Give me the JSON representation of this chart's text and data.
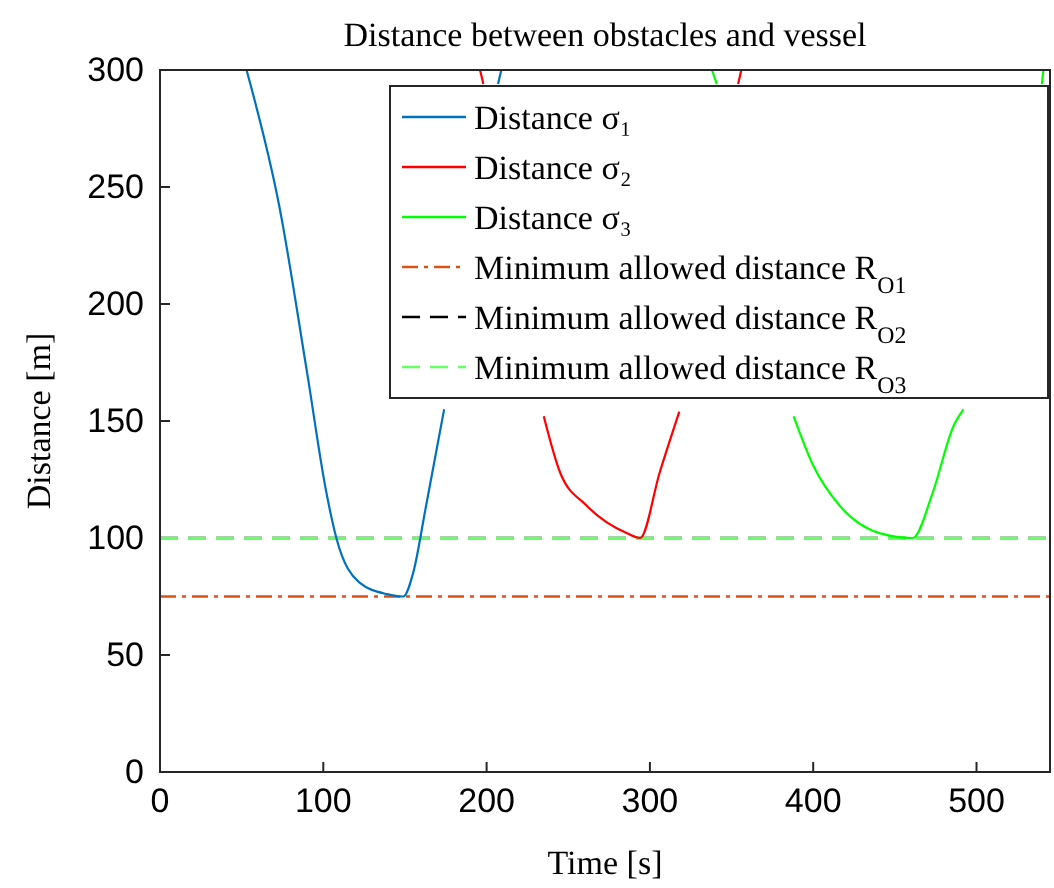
{
  "chart_data": {
    "type": "line",
    "title": "Distance between obstacles and vessel",
    "xlabel": "Time [s]",
    "ylabel": "Distance [m]",
    "xlim": [
      0,
      545
    ],
    "xticks": [
      0,
      100,
      200,
      300,
      400,
      500
    ],
    "ylim": [
      0,
      300
    ],
    "yticks": [
      0,
      50,
      100,
      150,
      200,
      250,
      300
    ],
    "grid": false,
    "legend": "top right",
    "line_style": "solid",
    "marker": "none",
    "series": [
      {
        "name": "Distance σ₁",
        "color": "#0072bd",
        "x": [
          53,
          73,
          90,
          102,
          108,
          122,
          139,
          149,
          155,
          163,
          174,
          190,
          207,
          209
        ],
        "values": [
          300,
          242,
          171,
          119,
          100,
          81,
          76,
          75,
          85,
          114,
          155,
          null,
          294,
          300
        ]
      },
      {
        "name": "Distance σ₂",
        "color": "#ff0000",
        "x": [
          196,
          198,
          215,
          235,
          245,
          261,
          286,
          294,
          306,
          318,
          330,
          354,
          356
        ],
        "values": [
          300,
          294,
          null,
          152,
          128,
          114,
          102,
          100,
          128,
          154,
          null,
          294,
          300
        ]
      },
      {
        "name": "Distance σ₃",
        "color": "#00ff00",
        "x": [
          338,
          341,
          360,
          388,
          400,
          416,
          441,
          461,
          473,
          486,
          492,
          510,
          540,
          541
        ],
        "values": [
          300,
          294,
          null,
          152,
          131,
          114,
          102,
          100,
          119,
          148,
          155,
          null,
          294,
          300
        ]
      }
    ],
    "ref_lines": [
      {
        "axis": "y",
        "value": 75,
        "label": "Minimum allowed distance R$_{O1}$",
        "color": "#d95319",
        "line_style": "dashdot"
      },
      {
        "axis": "y",
        "value": 100,
        "label": "Minimum allowed distance R$_{O2}$",
        "color": "#000000",
        "line_style": "dashed"
      },
      {
        "axis": "y",
        "value": 100,
        "label": "Minimum allowed distance R$_{O3}$",
        "color": "#66ff66",
        "line_style": "dashed"
      }
    ]
  }
}
